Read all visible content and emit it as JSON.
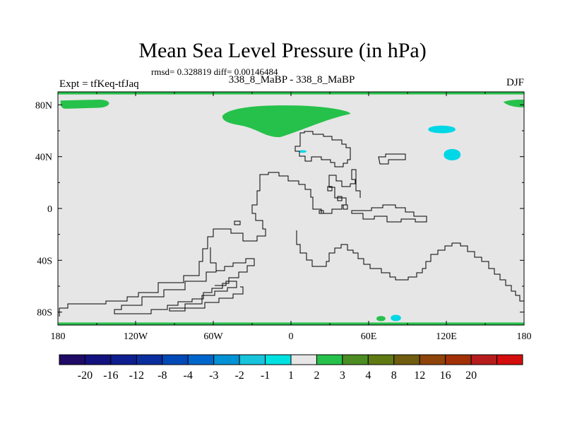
{
  "title": "Mean Sea Level Pressure (in hPa)",
  "stats_line": "rmsd= 0.328819 diff= 0.00146484",
  "left_label": "Expt = tfKeq-tfJaq",
  "center_label": "338_8_MaBP - 338_8_MaBP",
  "right_label": "DJF",
  "colors": {
    "map_background": "#e6e6e6",
    "coastline": "#000000",
    "positive_anomaly": "#26c14b",
    "negative_anomaly": "#00d7e6"
  },
  "chart_data": {
    "type": "heatmap",
    "projection": "cylindrical-equidistant",
    "x_axis": {
      "range": [
        -180,
        180
      ],
      "ticks": [
        -180,
        -120,
        -60,
        0,
        60,
        120,
        180
      ],
      "tick_labels": [
        "180",
        "120W",
        "60W",
        "0",
        "60E",
        "120E",
        "180"
      ]
    },
    "y_axis": {
      "range": [
        -90,
        90
      ],
      "ticks": [
        80,
        40,
        0,
        -40,
        -80
      ],
      "tick_labels": [
        "80N",
        "40N",
        "0",
        "40S",
        "80S"
      ]
    },
    "anomaly_regions": [
      {
        "name": "north-pacific-polar",
        "sign": "positive",
        "class": "1 to 2",
        "lon": [
          -178,
          -138
        ],
        "lat": [
          77,
          84
        ]
      },
      {
        "name": "arctic-europe",
        "sign": "positive",
        "class": "1 to 2",
        "lon": [
          -53,
          46
        ],
        "lat": [
          55,
          80
        ]
      },
      {
        "name": "dateline-arctic",
        "sign": "positive",
        "class": "1 to 2",
        "lon": [
          164,
          180
        ],
        "lat": [
          78,
          84
        ]
      },
      {
        "name": "north-pacific-east",
        "sign": "negative",
        "class": "-2 to -1",
        "lon": [
          106,
          127
        ],
        "lat": [
          58,
          64
        ]
      },
      {
        "name": "central-pacific",
        "sign": "negative",
        "class": "-2 to -1",
        "lon": [
          118,
          131
        ],
        "lat": [
          37,
          46
        ]
      },
      {
        "name": "atlantic-small",
        "sign": "negative",
        "class": "-2 to -1",
        "lon": [
          6,
          12
        ],
        "lat": [
          43,
          45
        ]
      },
      {
        "name": "antarctic-a",
        "sign": "positive",
        "class": "1 to 2",
        "lon": [
          66,
          73
        ],
        "lat": [
          -87,
          -83
        ]
      },
      {
        "name": "antarctic-b",
        "sign": "negative",
        "class": "-2 to -1",
        "lon": [
          77,
          85
        ],
        "lat": [
          -87,
          -82
        ]
      },
      {
        "name": "south-pole-band",
        "sign": "positive",
        "class": "1 to 2",
        "lon": [
          -180,
          180
        ],
        "lat": [
          -90,
          -88
        ]
      },
      {
        "name": "north-pole-band",
        "sign": "positive",
        "class": "1 to 2",
        "lon": [
          -180,
          180
        ],
        "lat": [
          88,
          90
        ]
      }
    ],
    "colorbar": {
      "labels": [
        "-20",
        "-16",
        "-12",
        "-8",
        "-4",
        "-3",
        "-2",
        "-1",
        "1",
        "2",
        "3",
        "4",
        "8",
        "12",
        "16",
        "20"
      ],
      "colors": [
        "#1f0a66",
        "#13127f",
        "#0e1e8f",
        "#0a2e9e",
        "#0049b7",
        "#0066cc",
        "#0092d4",
        "#18c3dc",
        "#00e1e1",
        "#e6e6e6",
        "#26c14b",
        "#4b8d22",
        "#5f7a12",
        "#6f5c0f",
        "#8f4409",
        "#a23006",
        "#b71c1c",
        "#d40d0d"
      ]
    }
  }
}
